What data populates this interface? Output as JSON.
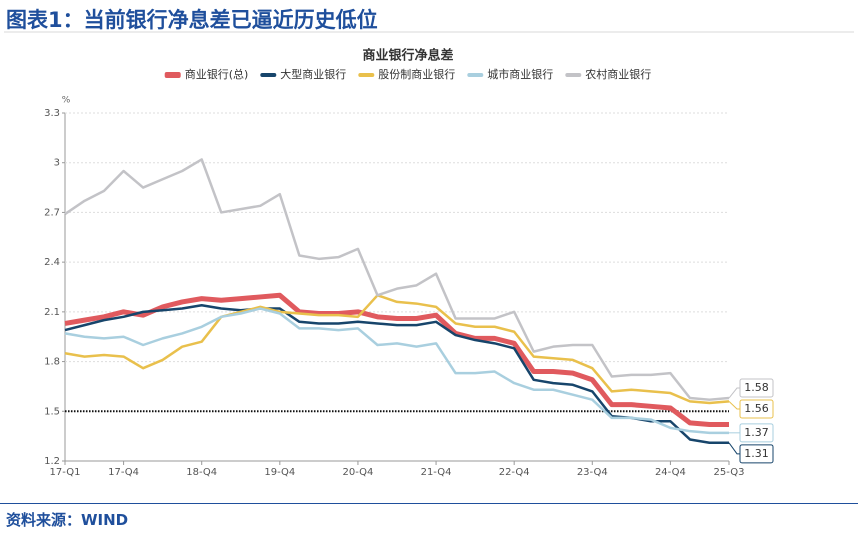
{
  "header": {
    "title": "图表1：当前银行净息差已逼近历史低位"
  },
  "footer": {
    "source": "资料来源：WIND"
  },
  "chart_data": {
    "type": "line",
    "title": "商业银行净息差",
    "y_unit": "%",
    "categories": [
      "17-Q1",
      null,
      null,
      "17-Q4",
      null,
      null,
      null,
      "18-Q4",
      null,
      null,
      null,
      "19-Q4",
      null,
      null,
      null,
      "20-Q4",
      null,
      null,
      null,
      "21-Q4",
      null,
      null,
      null,
      "22-Q4",
      null,
      null,
      null,
      "23-Q4",
      null,
      null,
      null,
      "24-Q4",
      null,
      null,
      "25-Q3"
    ],
    "ylim": [
      1.2,
      3.3
    ],
    "yticks": [
      1.2,
      1.5,
      1.8,
      2.1,
      2.4,
      2.7,
      3,
      3.3
    ],
    "grid": true,
    "reference_line": 1.5,
    "legend": "top",
    "series": [
      {
        "name": "商业银行(总)",
        "color": "#e05a5e",
        "width": 5,
        "end_label": false,
        "values": [
          2.03,
          2.05,
          2.07,
          2.1,
          2.08,
          2.13,
          2.16,
          2.18,
          2.17,
          2.18,
          2.19,
          2.2,
          2.1,
          2.09,
          2.09,
          2.1,
          2.07,
          2.06,
          2.06,
          2.08,
          1.97,
          1.94,
          1.94,
          1.91,
          1.74,
          1.74,
          1.73,
          1.69,
          1.54,
          1.54,
          1.53,
          1.52,
          1.43,
          1.42,
          1.42
        ]
      },
      {
        "name": "大型商业银行",
        "color": "#17456b",
        "width": 2.5,
        "end_label": true,
        "values": [
          1.99,
          2.02,
          2.05,
          2.07,
          2.1,
          2.11,
          2.12,
          2.14,
          2.12,
          2.11,
          2.12,
          2.12,
          2.04,
          2.03,
          2.03,
          2.04,
          2.03,
          2.02,
          2.02,
          2.04,
          1.96,
          1.93,
          1.91,
          1.88,
          1.69,
          1.67,
          1.66,
          1.62,
          1.47,
          1.46,
          1.44,
          1.44,
          1.33,
          1.31,
          1.31
        ]
      },
      {
        "name": "股份制商业银行",
        "color": "#e9c04c",
        "width": 2.5,
        "end_label": true,
        "values": [
          1.85,
          1.83,
          1.84,
          1.83,
          1.76,
          1.81,
          1.89,
          1.92,
          2.07,
          2.1,
          2.13,
          2.1,
          2.09,
          2.08,
          2.08,
          2.07,
          2.2,
          2.16,
          2.15,
          2.13,
          2.03,
          2.01,
          2.01,
          1.98,
          1.83,
          1.82,
          1.81,
          1.76,
          1.62,
          1.63,
          1.62,
          1.61,
          1.56,
          1.55,
          1.56
        ]
      },
      {
        "name": "城市商业银行",
        "color": "#a9cfdf",
        "width": 2.5,
        "end_label": true,
        "values": [
          1.97,
          1.95,
          1.94,
          1.95,
          1.9,
          1.94,
          1.97,
          2.01,
          2.07,
          2.09,
          2.12,
          2.09,
          2.0,
          2.0,
          1.99,
          2.0,
          1.9,
          1.91,
          1.89,
          1.91,
          1.73,
          1.73,
          1.74,
          1.67,
          1.63,
          1.63,
          1.6,
          1.57,
          1.46,
          1.46,
          1.45,
          1.4,
          1.38,
          1.37,
          1.37
        ]
      },
      {
        "name": "农村商业银行",
        "color": "#c3c3c7",
        "width": 2.5,
        "end_label": true,
        "values": [
          2.69,
          2.77,
          2.83,
          2.95,
          2.85,
          2.9,
          2.95,
          3.02,
          2.7,
          2.72,
          2.74,
          2.81,
          2.44,
          2.42,
          2.43,
          2.48,
          2.2,
          2.24,
          2.26,
          2.33,
          2.06,
          2.06,
          2.06,
          2.1,
          1.86,
          1.89,
          1.9,
          1.9,
          1.71,
          1.72,
          1.72,
          1.73,
          1.58,
          1.57,
          1.58
        ]
      }
    ]
  }
}
